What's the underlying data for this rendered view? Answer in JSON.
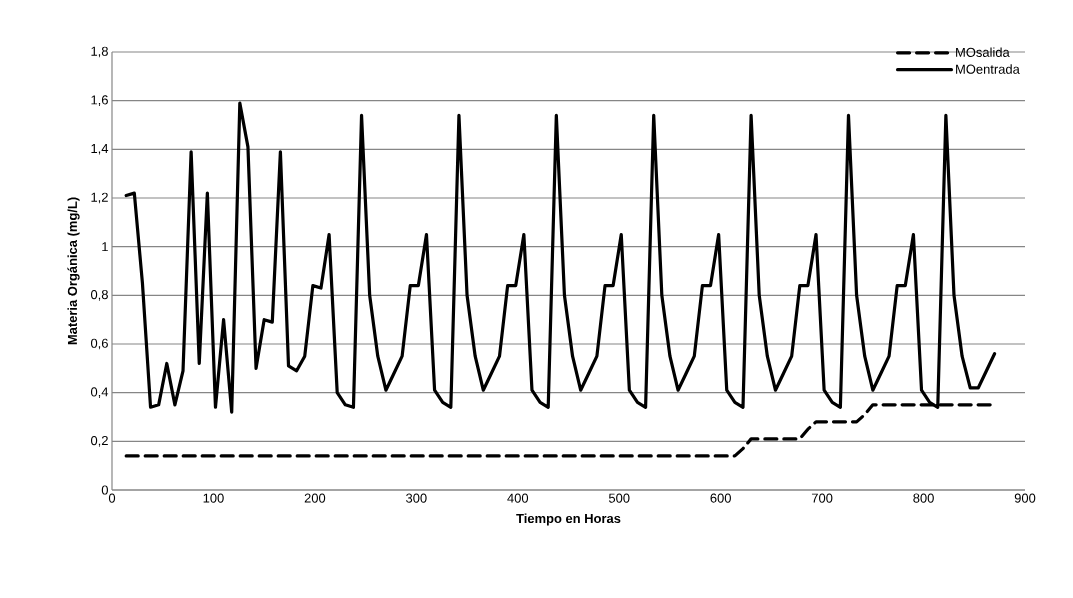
{
  "chart_data": {
    "type": "line",
    "xlabel": "Tiempo en Horas",
    "ylabel": "Materia Orgánica (mg/L)",
    "xlim": [
      0,
      900
    ],
    "xticks": [
      0,
      100,
      200,
      300,
      400,
      500,
      600,
      700,
      800,
      900
    ],
    "ylim": [
      0,
      1.8
    ],
    "yticks": [
      0,
      {
        "value": 0.2,
        "label": "0,2"
      },
      {
        "value": 0.4,
        "label": "0,4"
      },
      {
        "value": 0.6,
        "label": "0,6"
      },
      {
        "value": 0.8,
        "label": "0,8"
      },
      1,
      {
        "value": 1.2,
        "label": "1,2"
      },
      {
        "value": 1.4,
        "label": "1,4"
      },
      {
        "value": 1.6,
        "label": "1,6"
      },
      {
        "value": 1.8,
        "label": "1,8"
      }
    ],
    "grid": "y",
    "legend": "top right",
    "marker": "none",
    "series": [
      {
        "name": "MOsalida",
        "color": "#000000",
        "line_style": "dashed",
        "x": [
          14,
          614,
          622,
          630,
          678,
          686,
          694,
          734,
          742,
          750,
          870
        ],
        "values": [
          0.14,
          0.14,
          0.17,
          0.21,
          0.21,
          0.25,
          0.28,
          0.28,
          0.31,
          0.35,
          0.35
        ]
      },
      {
        "name": "MOentrada",
        "color": "#000000",
        "line_style": "solid",
        "x": [
          14,
          22,
          30,
          38,
          46,
          54,
          62,
          70,
          78,
          86,
          94,
          102,
          110,
          118,
          126,
          134,
          142,
          150,
          158,
          166,
          174,
          182,
          190,
          198,
          206,
          214,
          222,
          230,
          238,
          246,
          254,
          262,
          270,
          278,
          286,
          294,
          302,
          310,
          318,
          326,
          334,
          342,
          350,
          358,
          366,
          374,
          382,
          390,
          398,
          406,
          414,
          422,
          430,
          438,
          446,
          454,
          462,
          470,
          478,
          486,
          494,
          502,
          510,
          518,
          526,
          534,
          542,
          550,
          558,
          566,
          574,
          582,
          590,
          598,
          606,
          614,
          622,
          630,
          638,
          646,
          654,
          662,
          670,
          678,
          686,
          694,
          702,
          710,
          718,
          726,
          734,
          742,
          750,
          758,
          766,
          774,
          782,
          790,
          798,
          806,
          814,
          822,
          830,
          838,
          846,
          854,
          862,
          870
        ],
        "values": [
          1.21,
          1.22,
          0.85,
          0.34,
          0.35,
          0.52,
          0.35,
          0.49,
          1.39,
          0.52,
          1.22,
          0.34,
          0.7,
          0.32,
          1.59,
          1.41,
          0.5,
          0.7,
          0.69,
          1.39,
          0.51,
          0.49,
          0.55,
          0.84,
          0.83,
          1.05,
          0.4,
          0.35,
          0.34,
          1.54,
          0.8,
          0.55,
          0.41,
          0.48,
          0.55,
          0.84,
          0.84,
          1.05,
          0.41,
          0.36,
          0.34,
          1.54,
          0.8,
          0.55,
          0.41,
          0.48,
          0.55,
          0.84,
          0.84,
          1.05,
          0.41,
          0.36,
          0.34,
          1.54,
          0.8,
          0.55,
          0.41,
          0.48,
          0.55,
          0.84,
          0.84,
          1.05,
          0.41,
          0.36,
          0.34,
          1.54,
          0.8,
          0.55,
          0.41,
          0.48,
          0.55,
          0.84,
          0.84,
          1.05,
          0.41,
          0.36,
          0.34,
          1.54,
          0.8,
          0.55,
          0.41,
          0.48,
          0.55,
          0.84,
          0.84,
          1.05,
          0.41,
          0.36,
          0.34,
          1.54,
          0.8,
          0.55,
          0.41,
          0.48,
          0.55,
          0.84,
          0.84,
          1.05,
          0.41,
          0.36,
          0.34,
          1.54,
          0.8,
          0.55,
          0.42,
          0.42,
          0.49,
          0.56
        ]
      }
    ]
  }
}
